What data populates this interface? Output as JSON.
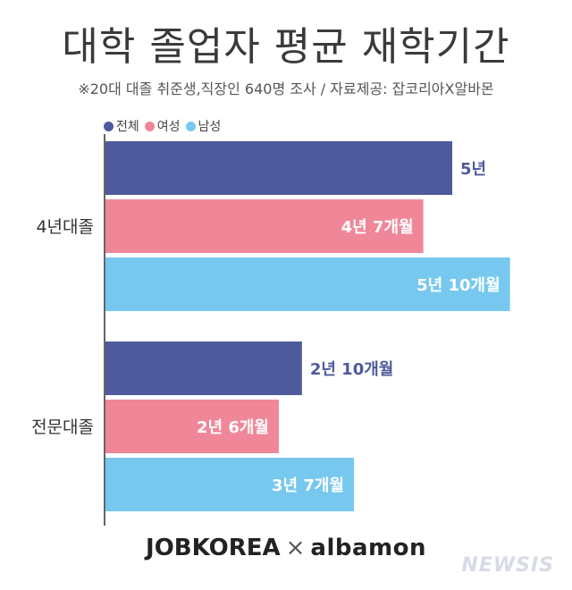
{
  "header": {
    "title": "대학 졸업자 평균 재학기간",
    "subtitle": "※20대 대졸 취준생,직장인 640명 조사 / 자료제공: 잡코리아X알바몬"
  },
  "footer": {
    "logo_left": "JOBKOREA",
    "logo_sep": "×",
    "logo_right": "albamon",
    "watermark": "NEWSIS"
  },
  "chart_data": {
    "type": "bar",
    "orientation": "horizontal",
    "title": "대학 졸업자 평균 재학기간",
    "categories": [
      "4년대졸",
      "전문대졸"
    ],
    "series": [
      {
        "name": "전체",
        "color": "#4e5a9b",
        "values": [
          5.0,
          2.833
        ],
        "labels": [
          "5년",
          "2년 10개월"
        ]
      },
      {
        "name": "여성",
        "color": "#f08799",
        "values": [
          4.583,
          2.5
        ],
        "labels": [
          "4년 7개월",
          "2년 6개월"
        ]
      },
      {
        "name": "남성",
        "color": "#77c8ef",
        "values": [
          5.833,
          3.583
        ],
        "labels": [
          "5년 10개월",
          "3년 7개월"
        ]
      }
    ],
    "xlim": [
      0,
      6
    ],
    "legend": "top-left",
    "grid": false
  }
}
